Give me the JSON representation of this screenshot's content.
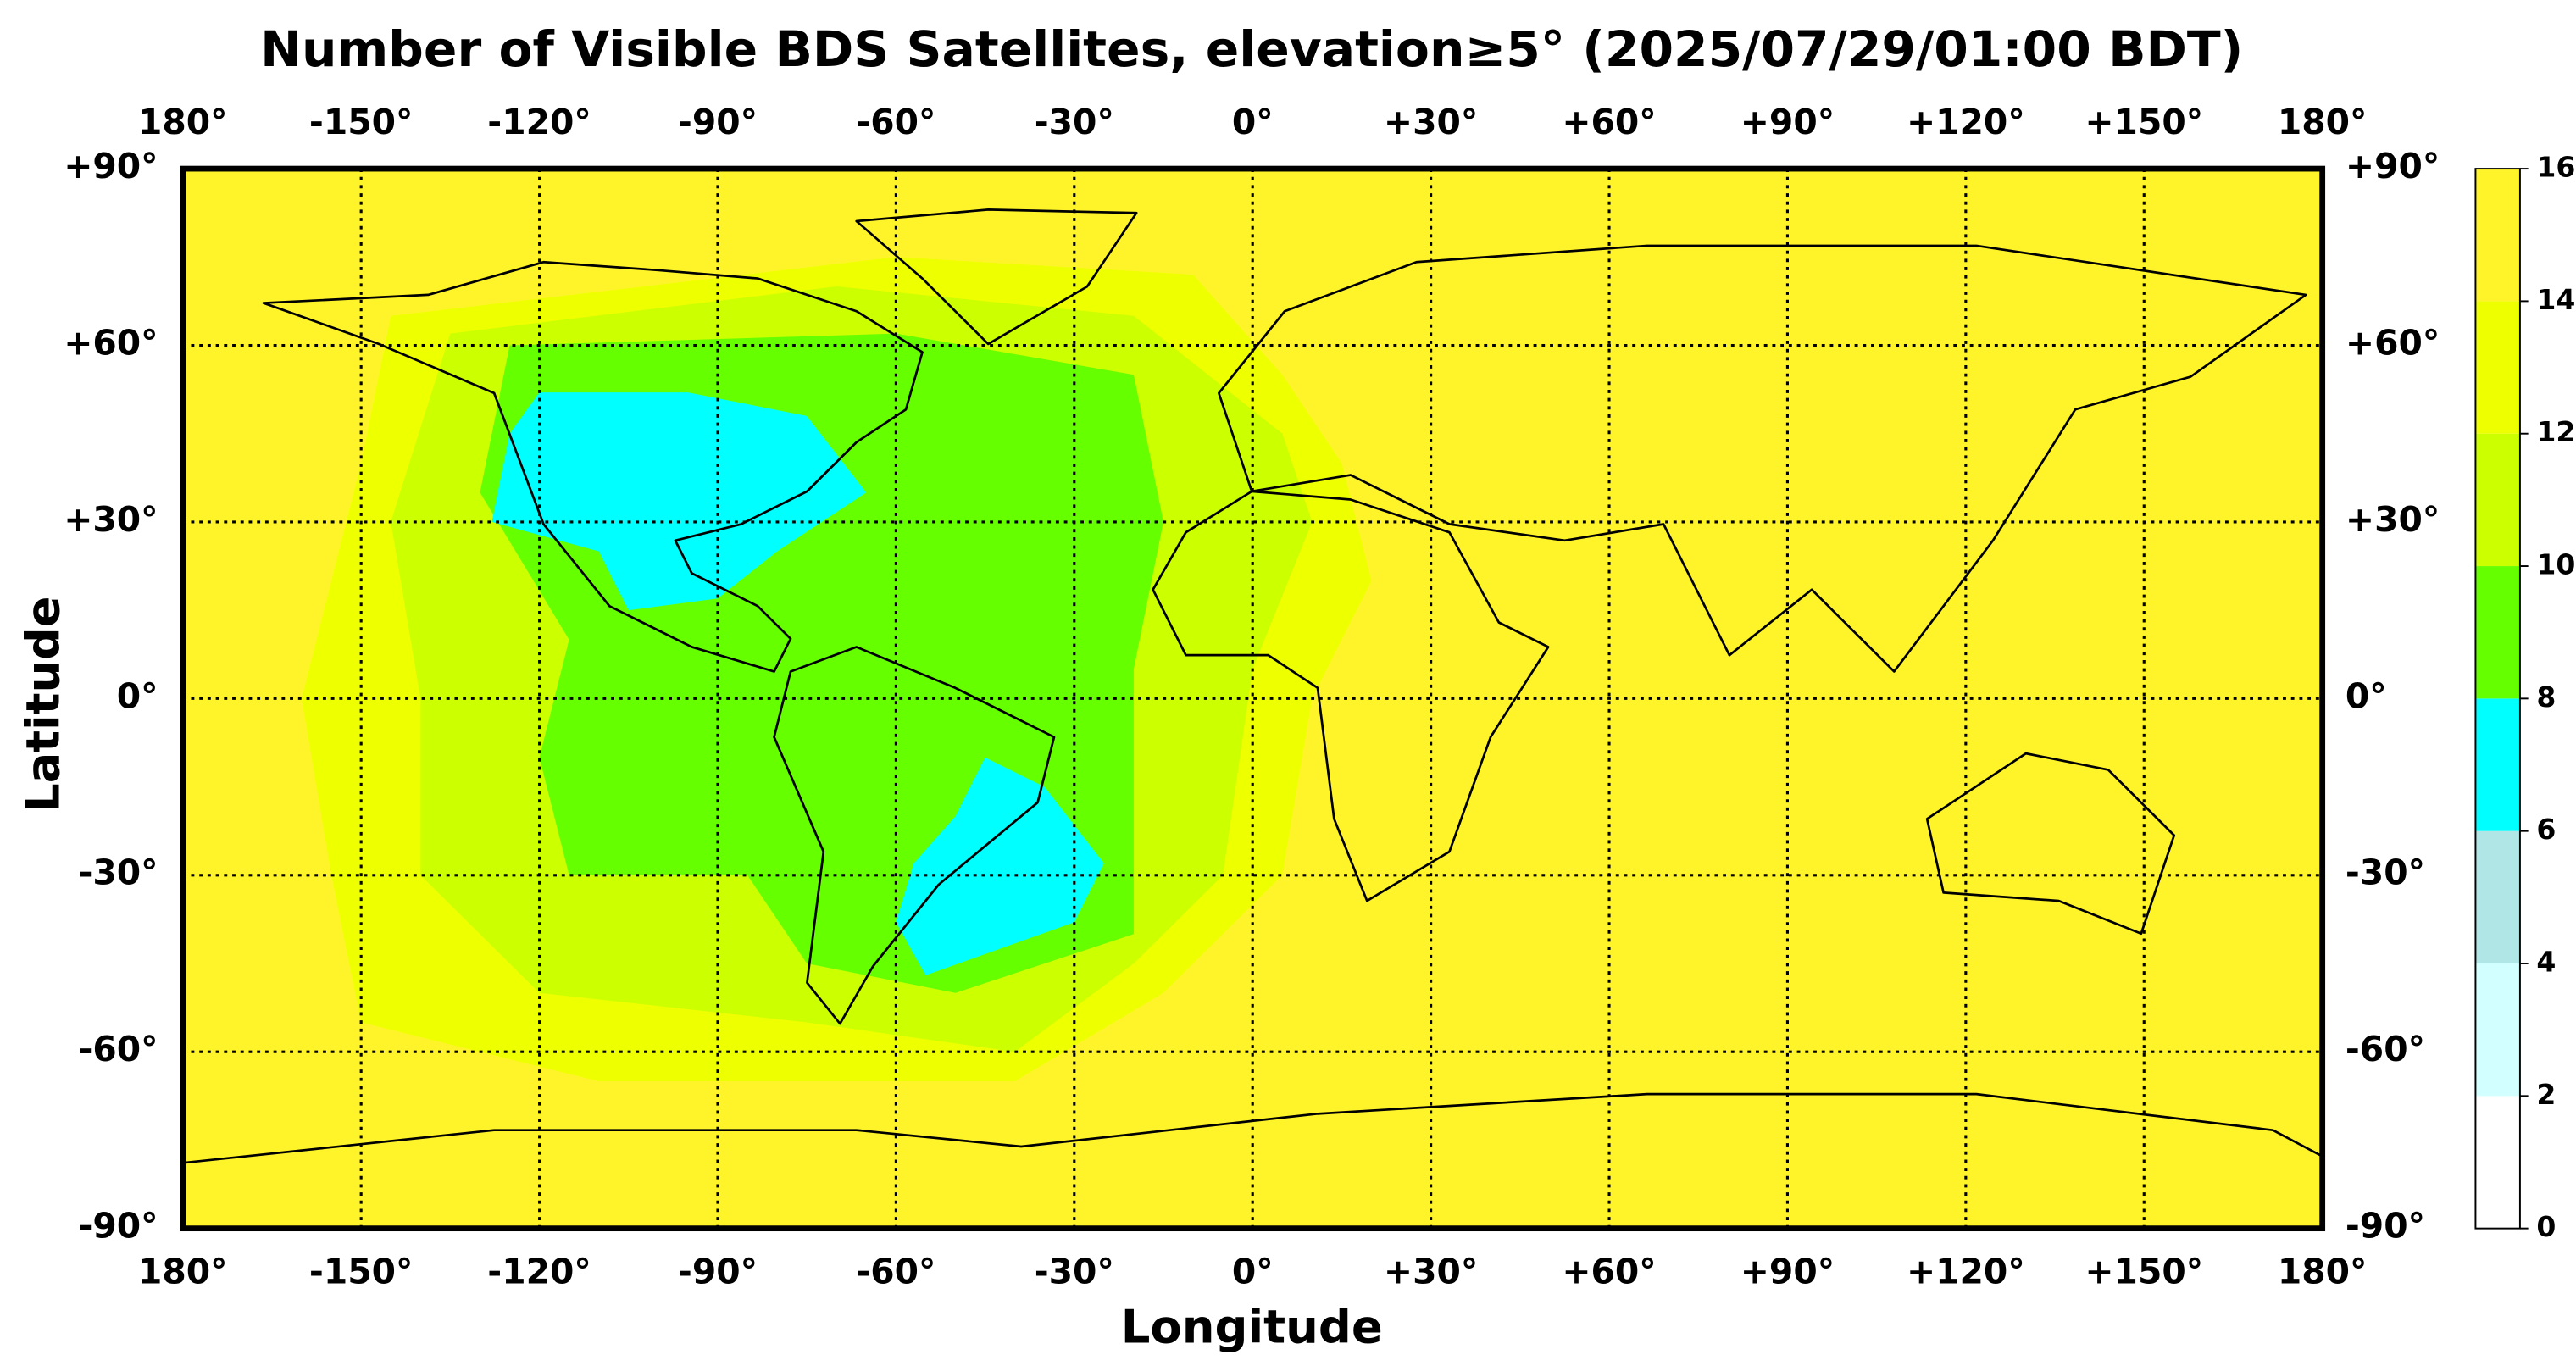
{
  "chart_data": {
    "type": "heatmap_map",
    "title": "Number of Visible BDS Satellites, elevation≥5° (2025/07/29/01:00 BDT)",
    "xlabel": "Longitude",
    "ylabel": "Latitude",
    "xlim": [
      -180,
      180
    ],
    "ylim": [
      -90,
      90
    ],
    "xticks": [
      {
        "value": -180,
        "label": "180°"
      },
      {
        "value": -150,
        "label": "-150°"
      },
      {
        "value": -120,
        "label": "-120°"
      },
      {
        "value": -90,
        "label": "-90°"
      },
      {
        "value": -60,
        "label": "-60°"
      },
      {
        "value": -30,
        "label": "-30°"
      },
      {
        "value": 0,
        "label": "0°"
      },
      {
        "value": 30,
        "label": "+30°"
      },
      {
        "value": 60,
        "label": "+60°"
      },
      {
        "value": 90,
        "label": "+90°"
      },
      {
        "value": 120,
        "label": "+120°"
      },
      {
        "value": 150,
        "label": "+150°"
      },
      {
        "value": 180,
        "label": "180°"
      }
    ],
    "yticks": [
      {
        "value": 90,
        "label": "+90°"
      },
      {
        "value": 60,
        "label": "+60°"
      },
      {
        "value": 30,
        "label": "+30°"
      },
      {
        "value": 0,
        "label": "0°"
      },
      {
        "value": -30,
        "label": "-30°"
      },
      {
        "value": -60,
        "label": "-60°"
      },
      {
        "value": -90,
        "label": "-90°"
      }
    ],
    "grid": true,
    "colorbar": {
      "ticks": [
        0,
        2,
        4,
        6,
        8,
        10,
        12,
        14,
        16
      ],
      "colors": [
        "#ffffff",
        "#d2ffff",
        "#b0e6e6",
        "#00ffff",
        "#66ff00",
        "#ccff00",
        "#eeff00",
        "#fff42a"
      ]
    },
    "regions": [
      {
        "value": 15,
        "polygon": [
          [
            -180,
            90
          ],
          [
            180,
            90
          ],
          [
            180,
            -90
          ],
          [
            -180,
            -90
          ]
        ]
      },
      {
        "value": 13,
        "polygon": [
          [
            -145,
            65
          ],
          [
            -60,
            75
          ],
          [
            -10,
            72
          ],
          [
            5,
            55
          ],
          [
            15,
            40
          ],
          [
            20,
            20
          ],
          [
            10,
            0
          ],
          [
            5,
            -30
          ],
          [
            -15,
            -50
          ],
          [
            -40,
            -65
          ],
          [
            -110,
            -65
          ],
          [
            -150,
            -55
          ],
          [
            -155,
            -30
          ],
          [
            -160,
            0
          ],
          [
            -150,
            40
          ]
        ]
      },
      {
        "value": 11,
        "polygon": [
          [
            -135,
            62
          ],
          [
            -70,
            70
          ],
          [
            -20,
            65
          ],
          [
            5,
            45
          ],
          [
            10,
            30
          ],
          [
            0,
            5
          ],
          [
            -5,
            -30
          ],
          [
            -20,
            -45
          ],
          [
            -40,
            -60
          ],
          [
            -75,
            -55
          ],
          [
            -120,
            -50
          ],
          [
            -140,
            -30
          ],
          [
            -140,
            0
          ],
          [
            -145,
            30
          ]
        ]
      },
      {
        "value": 9,
        "polygon": [
          [
            -125,
            60
          ],
          [
            -60,
            62
          ],
          [
            -20,
            55
          ],
          [
            -15,
            30
          ],
          [
            -20,
            5
          ],
          [
            -20,
            -20
          ],
          [
            -20,
            -40
          ],
          [
            -50,
            -50
          ],
          [
            -75,
            -45
          ],
          [
            -85,
            -30
          ],
          [
            -115,
            -30
          ],
          [
            -120,
            -10
          ],
          [
            -115,
            10
          ],
          [
            -130,
            35
          ]
        ]
      },
      {
        "value": 7,
        "polygon": [
          [
            -120,
            52
          ],
          [
            -95,
            52
          ],
          [
            -75,
            48
          ],
          [
            -65,
            35
          ],
          [
            -80,
            25
          ],
          [
            -90,
            17
          ],
          [
            -105,
            15
          ],
          [
            -110,
            25
          ],
          [
            -128,
            30
          ],
          [
            -125,
            45
          ]
        ]
      },
      {
        "value": 7,
        "polygon": [
          [
            -45,
            -10
          ],
          [
            -35,
            -15
          ],
          [
            -25,
            -28
          ],
          [
            -30,
            -38
          ],
          [
            -55,
            -47
          ],
          [
            -60,
            -38
          ],
          [
            -57,
            -28
          ],
          [
            -50,
            -20
          ]
        ]
      }
    ]
  }
}
